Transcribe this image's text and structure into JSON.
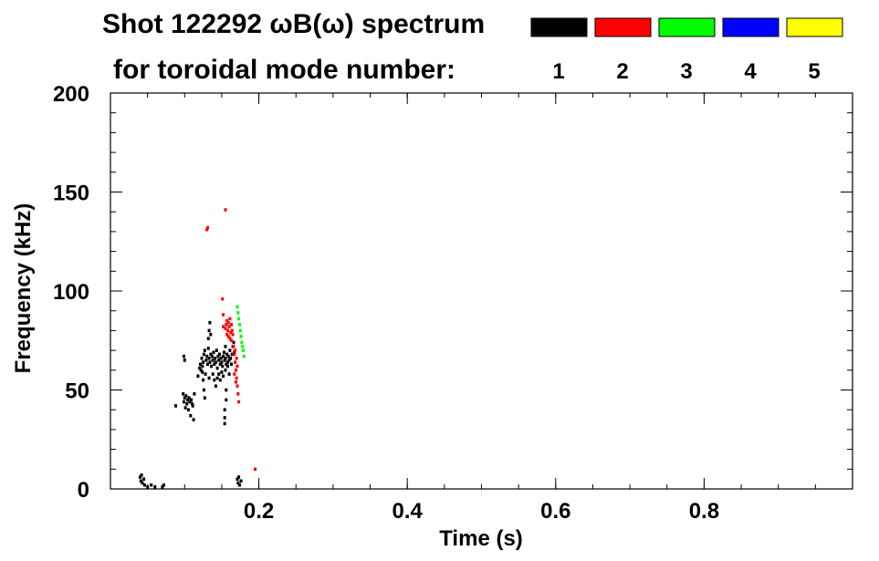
{
  "chart_data": {
    "type": "heatmap",
    "title": "Shot 122292 ωB(ω) spectrum",
    "legend_caption": "for toroidal mode number:",
    "xlabel": "Time (s)",
    "ylabel": "Frequency (kHz)",
    "xlim": [
      0.0,
      1.0
    ],
    "ylim": [
      0,
      200
    ],
    "xticks": [
      {
        "value": 0.2,
        "label": "0.2"
      },
      {
        "value": 0.4,
        "label": "0.4"
      },
      {
        "value": 0.6,
        "label": "0.6"
      },
      {
        "value": 0.8,
        "label": "0.8"
      }
    ],
    "yticks": [
      {
        "value": 0,
        "label": "0"
      },
      {
        "value": 50,
        "label": "50"
      },
      {
        "value": 100,
        "label": "100"
      },
      {
        "value": 150,
        "label": "150"
      },
      {
        "value": 200,
        "label": "200"
      }
    ],
    "x_minor_step": 0.05,
    "y_minor_step": 10,
    "legend_placement": "top-right",
    "legend": [
      {
        "mode": "1",
        "color": "#000000"
      },
      {
        "mode": "2",
        "color": "#ff0000"
      },
      {
        "mode": "3",
        "color": "#00ff00"
      },
      {
        "mode": "4",
        "color": "#0000ff"
      },
      {
        "mode": "5",
        "color": "#ffff00"
      }
    ],
    "grid": false,
    "series": [
      {
        "mode": "1",
        "color": "#000000",
        "points": [
          [
            0.04,
            6
          ],
          [
            0.041,
            4
          ],
          [
            0.042,
            7
          ],
          [
            0.043,
            3
          ],
          [
            0.045,
            5
          ],
          [
            0.046,
            2
          ],
          [
            0.05,
            1
          ],
          [
            0.055,
            2
          ],
          [
            0.06,
            1
          ],
          [
            0.07,
            1
          ],
          [
            0.072,
            2
          ],
          [
            0.088,
            42
          ],
          [
            0.098,
            48
          ],
          [
            0.099,
            44
          ],
          [
            0.1,
            46
          ],
          [
            0.101,
            41
          ],
          [
            0.102,
            47
          ],
          [
            0.103,
            43
          ],
          [
            0.104,
            45
          ],
          [
            0.105,
            40
          ],
          [
            0.106,
            46
          ],
          [
            0.107,
            44
          ],
          [
            0.108,
            37
          ],
          [
            0.109,
            45
          ],
          [
            0.11,
            43
          ],
          [
            0.111,
            42
          ],
          [
            0.112,
            35
          ],
          [
            0.113,
            48
          ],
          [
            0.099,
            67
          ],
          [
            0.1,
            65
          ],
          [
            0.118,
            57
          ],
          [
            0.12,
            61
          ],
          [
            0.121,
            63
          ],
          [
            0.122,
            60
          ],
          [
            0.123,
            66
          ],
          [
            0.124,
            62
          ],
          [
            0.125,
            64
          ],
          [
            0.126,
            68
          ],
          [
            0.127,
            70
          ],
          [
            0.128,
            58
          ],
          [
            0.129,
            65
          ],
          [
            0.13,
            67
          ],
          [
            0.131,
            63
          ],
          [
            0.132,
            71
          ],
          [
            0.133,
            66
          ],
          [
            0.134,
            64
          ],
          [
            0.135,
            68
          ],
          [
            0.136,
            62
          ],
          [
            0.137,
            67
          ],
          [
            0.138,
            65
          ],
          [
            0.139,
            69
          ],
          [
            0.14,
            63
          ],
          [
            0.141,
            66
          ],
          [
            0.142,
            64
          ],
          [
            0.143,
            70
          ],
          [
            0.144,
            61
          ],
          [
            0.145,
            67
          ],
          [
            0.146,
            65
          ],
          [
            0.147,
            68
          ],
          [
            0.148,
            63
          ],
          [
            0.149,
            66
          ],
          [
            0.15,
            64
          ],
          [
            0.151,
            62
          ],
          [
            0.152,
            67
          ],
          [
            0.153,
            69
          ],
          [
            0.154,
            65
          ],
          [
            0.155,
            66
          ],
          [
            0.156,
            63
          ],
          [
            0.157,
            68
          ],
          [
            0.158,
            64
          ],
          [
            0.159,
            67
          ],
          [
            0.16,
            65
          ],
          [
            0.161,
            70
          ],
          [
            0.162,
            66
          ],
          [
            0.163,
            63
          ],
          [
            0.164,
            68
          ],
          [
            0.165,
            72
          ],
          [
            0.166,
            74
          ],
          [
            0.167,
            69
          ],
          [
            0.124,
            59
          ],
          [
            0.125,
            55
          ],
          [
            0.126,
            50
          ],
          [
            0.127,
            46
          ],
          [
            0.132,
            76
          ],
          [
            0.133,
            80
          ],
          [
            0.134,
            84
          ],
          [
            0.135,
            78
          ],
          [
            0.133,
            56
          ],
          [
            0.138,
            58
          ],
          [
            0.14,
            55
          ],
          [
            0.142,
            52
          ],
          [
            0.144,
            56
          ],
          [
            0.146,
            58
          ],
          [
            0.148,
            55
          ],
          [
            0.15,
            59
          ],
          [
            0.152,
            57
          ],
          [
            0.155,
            60
          ],
          [
            0.158,
            62
          ],
          [
            0.16,
            58
          ],
          [
            0.155,
            72
          ],
          [
            0.156,
            50
          ],
          [
            0.156,
            45
          ],
          [
            0.154,
            40
          ],
          [
            0.154,
            36
          ],
          [
            0.154,
            33
          ],
          [
            0.171,
            5
          ],
          [
            0.172,
            3
          ],
          [
            0.173,
            6
          ],
          [
            0.174,
            2
          ],
          [
            0.176,
            4
          ]
        ]
      },
      {
        "mode": "2",
        "color": "#ff0000",
        "points": [
          [
            0.13,
            131
          ],
          [
            0.131,
            132
          ],
          [
            0.155,
            141
          ],
          [
            0.151,
            96
          ],
          [
            0.152,
            88
          ],
          [
            0.152,
            82
          ],
          [
            0.155,
            81
          ],
          [
            0.156,
            83
          ],
          [
            0.157,
            85
          ],
          [
            0.158,
            80
          ],
          [
            0.159,
            84
          ],
          [
            0.16,
            82
          ],
          [
            0.161,
            86
          ],
          [
            0.162,
            79
          ],
          [
            0.163,
            83
          ],
          [
            0.164,
            80
          ],
          [
            0.157,
            78
          ],
          [
            0.159,
            77
          ],
          [
            0.161,
            76
          ],
          [
            0.165,
            78
          ],
          [
            0.163,
            75
          ],
          [
            0.166,
            72
          ],
          [
            0.167,
            68
          ],
          [
            0.168,
            64
          ],
          [
            0.169,
            60
          ],
          [
            0.17,
            56
          ],
          [
            0.171,
            52
          ],
          [
            0.172,
            48
          ],
          [
            0.173,
            44
          ],
          [
            0.168,
            70
          ],
          [
            0.17,
            66
          ],
          [
            0.167,
            58
          ],
          [
            0.169,
            54
          ],
          [
            0.171,
            62
          ],
          [
            0.195,
            10
          ]
        ]
      },
      {
        "mode": "3",
        "color": "#00ff00",
        "points": [
          [
            0.171,
            92
          ],
          [
            0.172,
            89
          ],
          [
            0.173,
            86
          ],
          [
            0.174,
            83
          ],
          [
            0.175,
            80
          ],
          [
            0.176,
            77
          ],
          [
            0.177,
            74
          ],
          [
            0.178,
            72
          ],
          [
            0.179,
            70
          ],
          [
            0.18,
            67
          ]
        ]
      }
    ]
  }
}
